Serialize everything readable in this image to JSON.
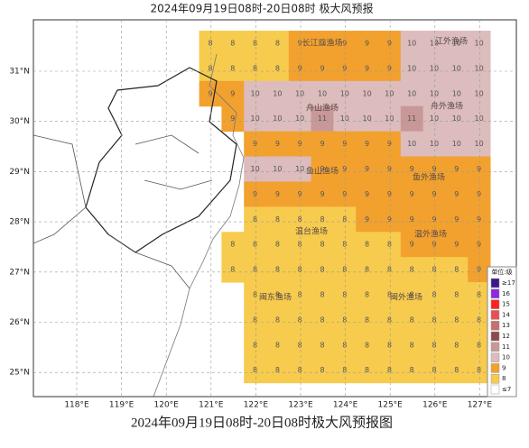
{
  "header": {
    "title": "2024年09月19日08时-20日08时 极大风预报"
  },
  "caption": "2024年09月19日08时-20日08时极大风预报图",
  "map": {
    "lon_ticks": [
      {
        "value": 118,
        "label": "118°E"
      },
      {
        "value": 119,
        "label": "119°E"
      },
      {
        "value": 120,
        "label": "120°E"
      },
      {
        "value": 121,
        "label": "121°E"
      },
      {
        "value": 122,
        "label": "122°E"
      },
      {
        "value": 123,
        "label": "123°E"
      },
      {
        "value": 124,
        "label": "124°E"
      },
      {
        "value": 125,
        "label": "125°E"
      },
      {
        "value": 126,
        "label": "126°E"
      },
      {
        "value": 127,
        "label": "127°E"
      }
    ],
    "lat_ticks": [
      {
        "value": 31,
        "label": "31°N"
      },
      {
        "value": 30,
        "label": "30°N"
      },
      {
        "value": 29,
        "label": "29°N"
      },
      {
        "value": 28,
        "label": "28°N"
      },
      {
        "value": 27,
        "label": "27°N"
      },
      {
        "value": 26,
        "label": "26°N"
      },
      {
        "value": 25,
        "label": "25°N"
      }
    ],
    "grid": [
      [
        8,
        8,
        8,
        8,
        9,
        9,
        9,
        9,
        9,
        10,
        10,
        10,
        10
      ],
      [
        8,
        8,
        8,
        8,
        9,
        9,
        9,
        9,
        9,
        10,
        10,
        10,
        10
      ],
      [
        9,
        9,
        10,
        10,
        10,
        10,
        10,
        10,
        10,
        10,
        10,
        10,
        10
      ],
      [
        null,
        9,
        10,
        10,
        10,
        11,
        10,
        10,
        10,
        11,
        10,
        10,
        10
      ],
      [
        null,
        null,
        9,
        9,
        9,
        9,
        9,
        9,
        9,
        10,
        10,
        10,
        10
      ],
      [
        null,
        null,
        10,
        10,
        10,
        9,
        9,
        9,
        9,
        9,
        9,
        9,
        9
      ],
      [
        null,
        null,
        9,
        9,
        9,
        9,
        9,
        9,
        9,
        9,
        9,
        9,
        9
      ],
      [
        null,
        null,
        8,
        8,
        8,
        8,
        8,
        9,
        9,
        9,
        9,
        9,
        9
      ],
      [
        null,
        8,
        8,
        8,
        8,
        8,
        8,
        8,
        8,
        9,
        9,
        9,
        9
      ],
      [
        null,
        8,
        8,
        8,
        8,
        8,
        8,
        8,
        8,
        8,
        8,
        8,
        9
      ],
      [
        null,
        null,
        8,
        8,
        8,
        8,
        8,
        8,
        8,
        8,
        8,
        8,
        8
      ],
      [
        null,
        null,
        8,
        8,
        8,
        8,
        8,
        8,
        8,
        8,
        8,
        8,
        8
      ],
      [
        null,
        null,
        8,
        8,
        8,
        8,
        8,
        8,
        8,
        8,
        8,
        8,
        8
      ],
      [
        null,
        null,
        8,
        8,
        8,
        8,
        8,
        8,
        8,
        8,
        8,
        8,
        8
      ]
    ],
    "areas": [
      "长江口渔场",
      "江外渔场",
      "舟山渔场",
      "舟外渔场",
      "鱼山渔场",
      "鱼外渔场",
      "温台渔场",
      "温外渔场",
      "闽东渔场",
      "闽外渔场"
    ],
    "legend": {
      "title": "单位:级",
      "items": [
        {
          "label": "≥17",
          "color": "#3a1a8a"
        },
        {
          "label": "16",
          "color": "#8a2be2"
        },
        {
          "label": "15",
          "color": "#ff2222"
        },
        {
          "label": "14",
          "color": "#e85050"
        },
        {
          "label": "13",
          "color": "#c87070"
        },
        {
          "label": "12",
          "color": "#8e4a4a"
        },
        {
          "label": "11",
          "color": "#c89898"
        },
        {
          "label": "10",
          "color": "#dcbcbc"
        },
        {
          "label": "9",
          "color": "#f2a12e"
        },
        {
          "label": "8",
          "color": "#f7cb4d"
        },
        {
          "label": "≤7",
          "color": "#ffffff"
        }
      ]
    }
  }
}
